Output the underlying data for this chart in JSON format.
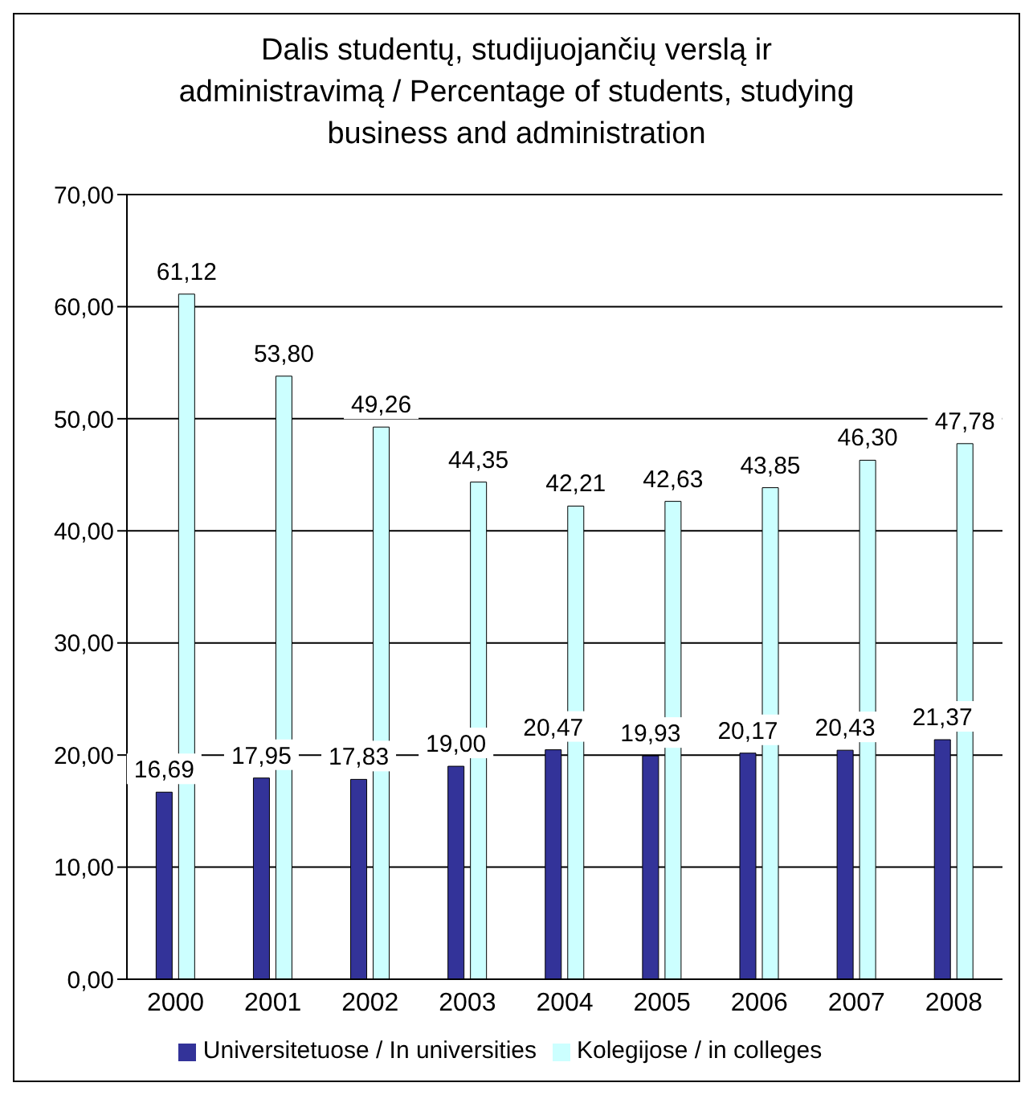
{
  "chart_data": {
    "type": "bar",
    "title": "Dalis studentų, studijuojančių verslą ir administravimą / Percentage of students, studying business and administration",
    "categories": [
      "2000",
      "2001",
      "2002",
      "2003",
      "2004",
      "2005",
      "2006",
      "2007",
      "2008"
    ],
    "series": [
      {
        "name": "Universitetuose / In universities",
        "color": "#333399",
        "values": [
          16.69,
          17.95,
          17.83,
          19.0,
          20.47,
          19.93,
          20.17,
          20.43,
          21.37
        ],
        "value_labels": [
          "16,69",
          "17,95",
          "17,83",
          "19,00",
          "20,47",
          "19,93",
          "20,17",
          "20,43",
          "21,37"
        ]
      },
      {
        "name": "Kolegijose / in colleges",
        "color": "#ccffff",
        "values": [
          61.12,
          53.8,
          49.26,
          44.35,
          42.21,
          42.63,
          43.85,
          46.3,
          47.78
        ],
        "value_labels": [
          "61,12",
          "53,80",
          "49,26",
          "44,35",
          "42,21",
          "42,63",
          "43,85",
          "46,30",
          "47,78"
        ]
      }
    ],
    "ylim": [
      0,
      70
    ],
    "yticks": [
      {
        "value": 0,
        "label": "0,00"
      },
      {
        "value": 10,
        "label": "10,00"
      },
      {
        "value": 20,
        "label": "20,00"
      },
      {
        "value": 30,
        "label": "30,00"
      },
      {
        "value": 40,
        "label": "40,00"
      },
      {
        "value": 50,
        "label": "50,00"
      },
      {
        "value": 60,
        "label": "60,00"
      },
      {
        "value": 70,
        "label": "70,00"
      }
    ],
    "grid": "y",
    "legend": "bottom"
  }
}
